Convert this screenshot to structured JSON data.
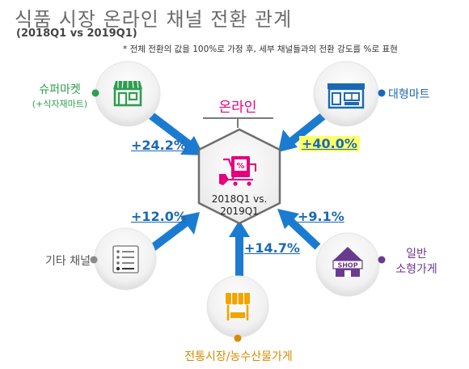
{
  "header": {
    "title": "식품 시장 온라인 채널 전환 관계",
    "subtitle": "(2018Q1 vs 2019Q1)",
    "note": "* 전체 전환의 값을 100%로 가정 후, 세부 채널들과의 전환 강도를 %로 표현"
  },
  "center": {
    "label": "온라인",
    "period_line1": "2018Q1 vs.",
    "period_line2": "2019Q1",
    "icon": "shopping-cart-percent-icon"
  },
  "channels": [
    {
      "id": "supermarket",
      "line1": "슈퍼마켓",
      "line2": "(+식자재마트)",
      "percent": "+24.2%",
      "icon": "storefront-icon",
      "color": "#2e9e4f"
    },
    {
      "id": "hypermarket",
      "line1": "대형마트",
      "percent": "+40.0%",
      "icon": "large-store-icon",
      "color": "#1b69b3",
      "highlight": "#ffff66"
    },
    {
      "id": "other",
      "line1": "기타 채널",
      "percent": "+12.0%",
      "icon": "list-icon",
      "color": "#7a7a7a"
    },
    {
      "id": "small-store",
      "line1": "일반",
      "line2": "소형가게",
      "percent": "+9.1%",
      "icon": "shop-house-icon",
      "color": "#6a3a8f"
    },
    {
      "id": "traditional",
      "line1": "전통시장/농수산물가게",
      "percent": "+14.7%",
      "icon": "market-stall-icon",
      "color": "#d98a00"
    }
  ],
  "colors": {
    "arrow": "#1b7bd1",
    "center_accent": "#e6007e",
    "hexagon_stroke": "#6d6d6d"
  }
}
